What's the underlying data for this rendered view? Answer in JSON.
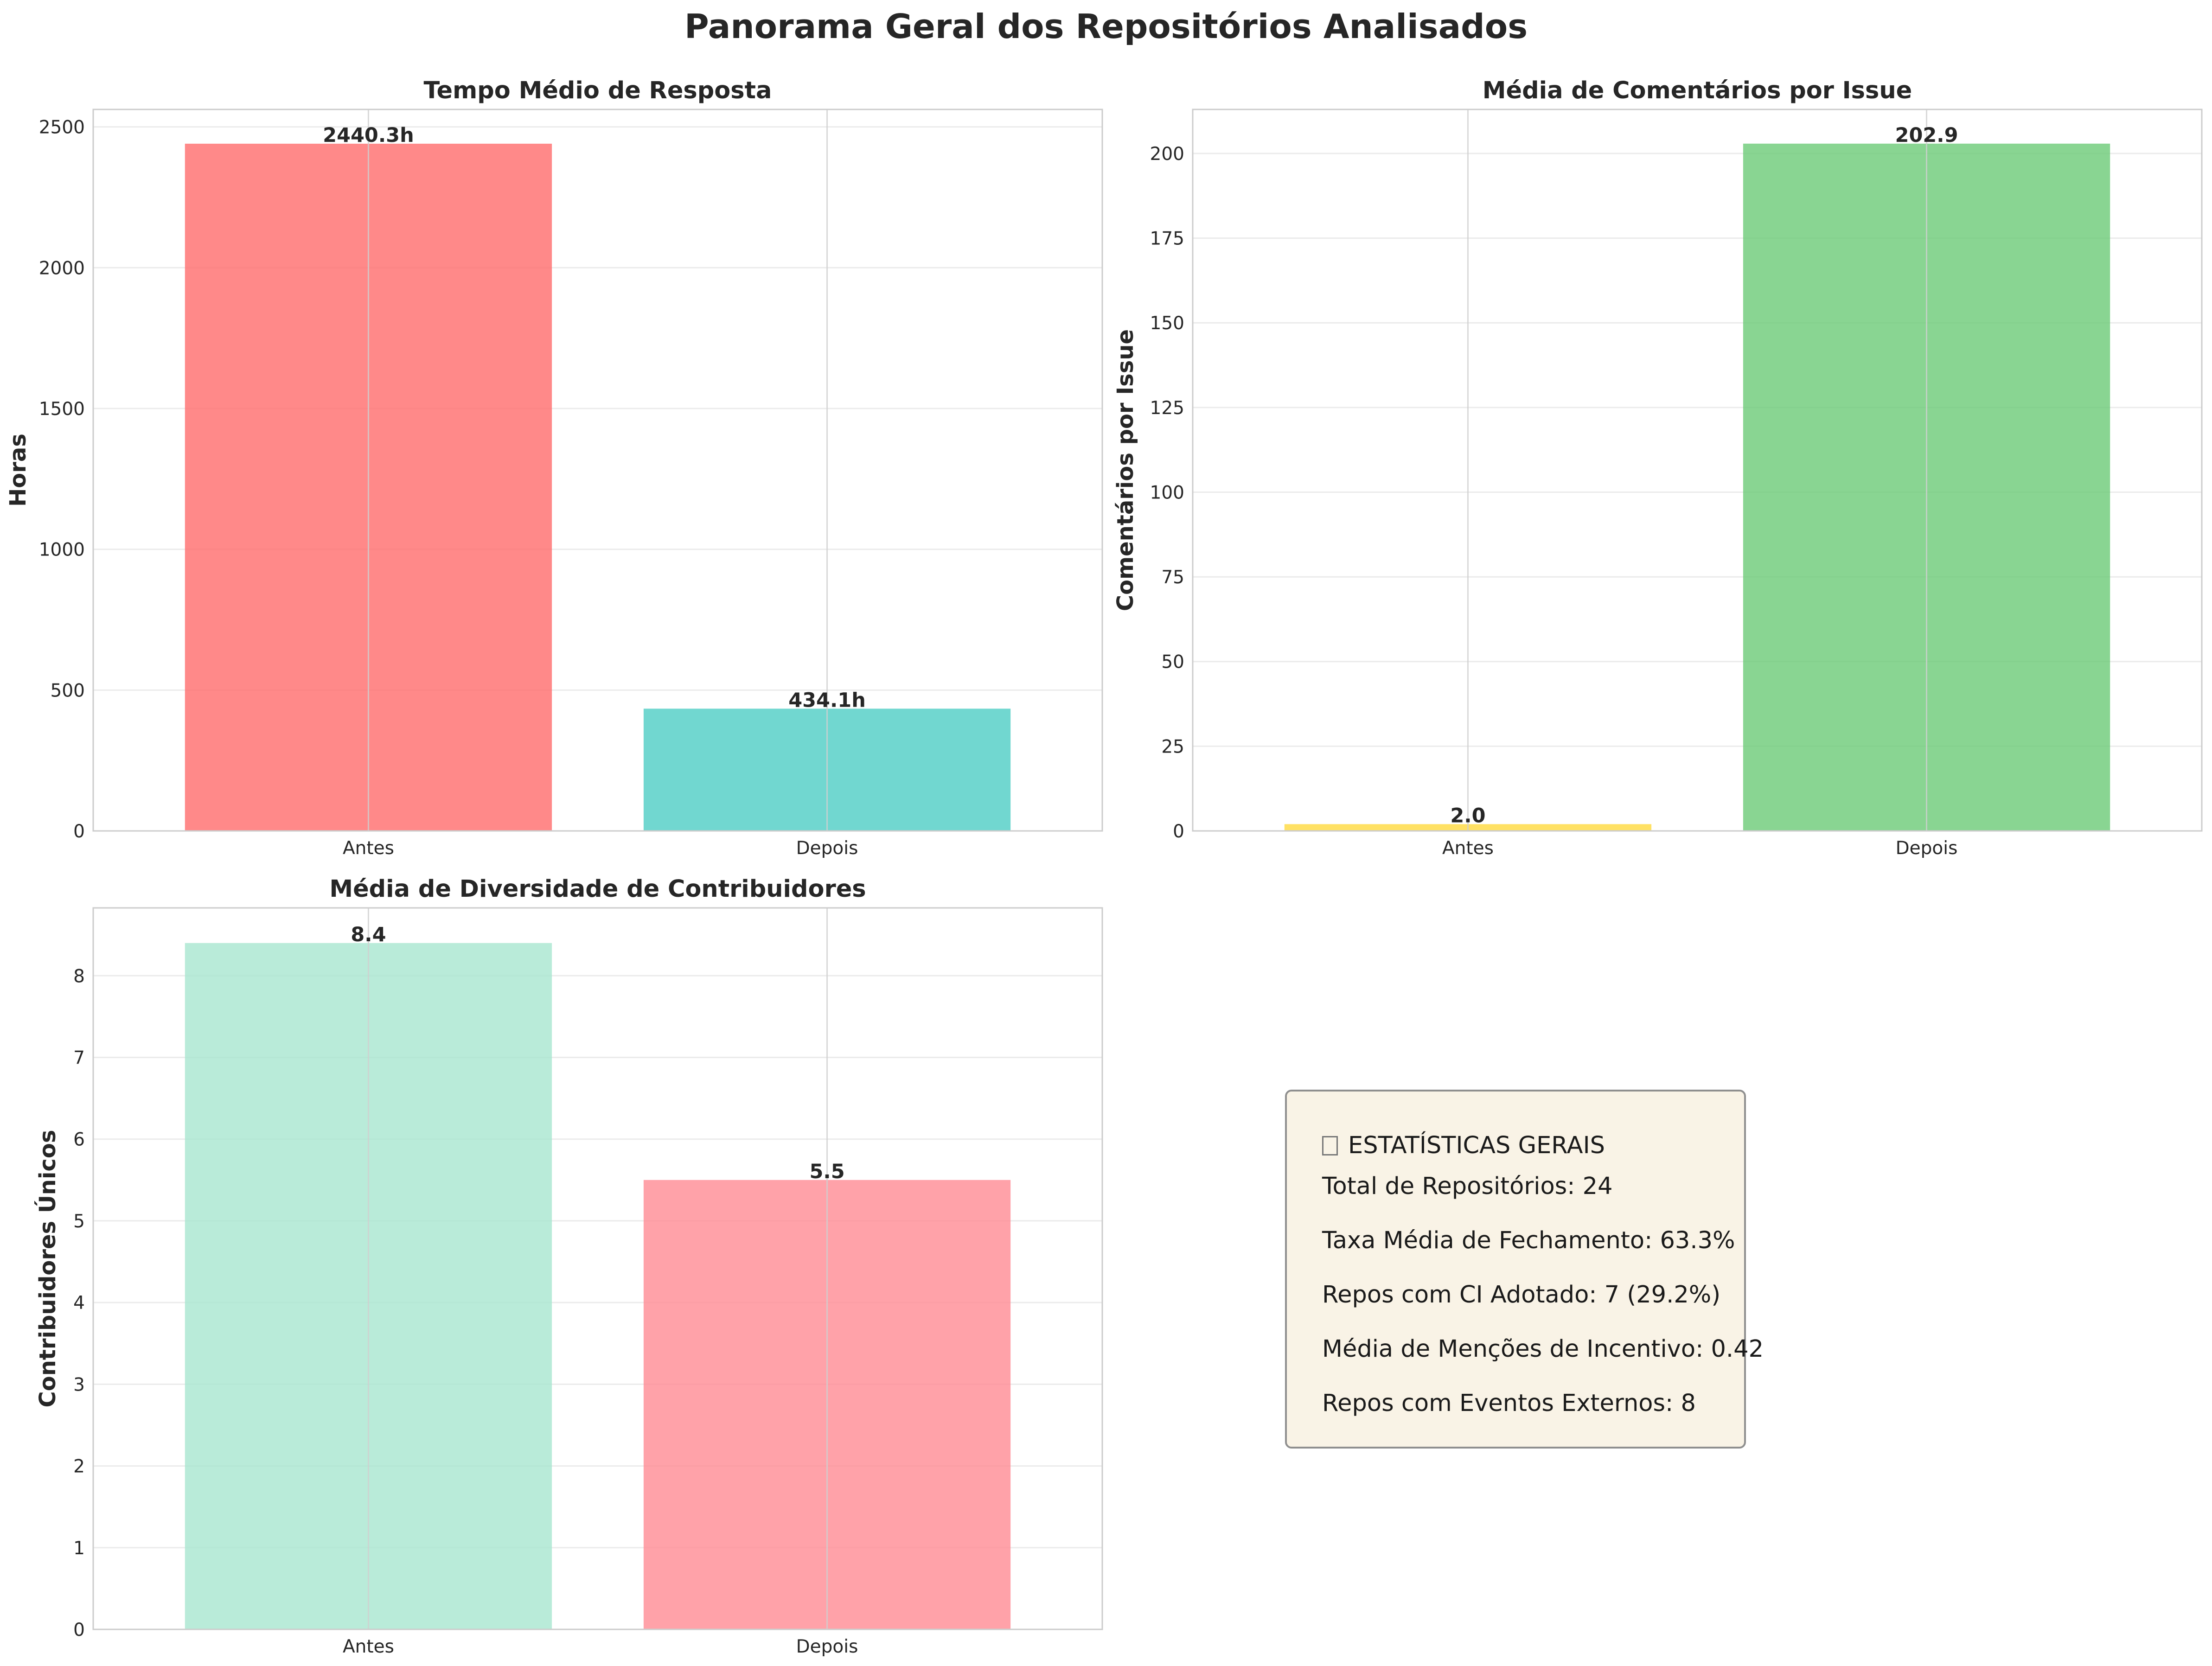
{
  "page_title": "Panorama Geral dos Repositórios Analisados",
  "chart_data": [
    {
      "type": "bar",
      "title": "Tempo Médio de Resposta",
      "xlabel": "",
      "ylabel": "Horas",
      "categories": [
        "Antes",
        "Depois"
      ],
      "values": [
        2440.3,
        434.1
      ],
      "value_labels": [
        "2440.3h",
        "434.1h"
      ],
      "colors": [
        "#ff6b6b",
        "#4ecdc4"
      ],
      "ylim": [
        0,
        2562
      ],
      "yticks": [
        0,
        500,
        1000,
        1500,
        2000,
        2500
      ],
      "ytick_labels": [
        "0",
        "500",
        "1000",
        "1500",
        "2000",
        "2500"
      ],
      "grid": true
    },
    {
      "type": "bar",
      "title": "Média de Comentários por Issue",
      "xlabel": "",
      "ylabel": "Comentários por Issue",
      "categories": [
        "Antes",
        "Depois"
      ],
      "values": [
        2.0,
        202.9
      ],
      "value_labels": [
        "2.0",
        "202.9"
      ],
      "colors": [
        "#ffd93d",
        "#6bcb77"
      ],
      "ylim": [
        0,
        213
      ],
      "yticks": [
        0,
        25,
        50,
        75,
        100,
        125,
        150,
        175,
        200
      ],
      "ytick_labels": [
        "0",
        "25",
        "50",
        "75",
        "100",
        "125",
        "150",
        "175",
        "200"
      ],
      "grid": true
    },
    {
      "type": "bar",
      "title": "Média de Diversidade de Contribuidores",
      "xlabel": "",
      "ylabel": "Contribuidores Únicos",
      "categories": [
        "Antes",
        "Depois"
      ],
      "values": [
        8.4,
        5.5
      ],
      "value_labels": [
        "8.4",
        "5.5"
      ],
      "colors": [
        "#a8e6cf",
        "#ff8b94"
      ],
      "ylim": [
        0,
        8.83
      ],
      "yticks": [
        0,
        1,
        2,
        3,
        4,
        5,
        6,
        7,
        8
      ],
      "ytick_labels": [
        "0",
        "1",
        "2",
        "3",
        "4",
        "5",
        "6",
        "7",
        "8"
      ],
      "grid": true
    }
  ],
  "stats": {
    "icon": "bar-chart-icon",
    "heading": "ESTATÍSTICAS GERAIS",
    "total_repos": "Total de Repositórios: 24",
    "closure_rate": "Taxa Média de Fechamento: 63.3%",
    "ci_repos": "Repos com CI Adotado: 7 (29.2%)",
    "incentive_mentions": "Média de Menções de Incentivo: 0.42",
    "external_events": "Repos com Eventos Externos: 8",
    "background": "#f9f3e6"
  }
}
